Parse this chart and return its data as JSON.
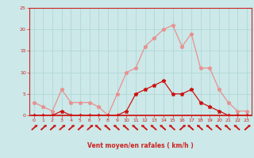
{
  "x": [
    0,
    1,
    2,
    3,
    4,
    5,
    6,
    7,
    8,
    9,
    10,
    11,
    12,
    13,
    14,
    15,
    16,
    17,
    18,
    19,
    20,
    21,
    22,
    23
  ],
  "wind_avg": [
    0,
    0,
    0,
    1,
    0,
    0,
    0,
    0,
    0,
    0,
    1,
    5,
    6,
    7,
    8,
    5,
    5,
    6,
    3,
    2,
    1,
    0,
    0,
    0
  ],
  "wind_gust": [
    3,
    2,
    1,
    6,
    3,
    3,
    3,
    2,
    0,
    5,
    10,
    11,
    16,
    18,
    20,
    21,
    16,
    19,
    11,
    11,
    6,
    3,
    1,
    1
  ],
  "xlabel": "Vent moyen/en rafales ( km/h )",
  "ylim": [
    0,
    25
  ],
  "xlim": [
    -0.5,
    23.5
  ],
  "yticks": [
    0,
    5,
    10,
    15,
    20,
    25
  ],
  "xticks": [
    0,
    1,
    2,
    3,
    4,
    5,
    6,
    7,
    8,
    9,
    10,
    11,
    12,
    13,
    14,
    15,
    16,
    17,
    18,
    19,
    20,
    21,
    22,
    23
  ],
  "grid_color": "#b0d8d8",
  "bg_color": "#cce8e8",
  "line_avg_color": "#cc1111",
  "line_gust_color": "#e89090",
  "axis_color": "#cc2222",
  "tick_color": "#cc2222",
  "label_color": "#cc2222",
  "figsize": [
    3.2,
    2.0
  ],
  "dpi": 100
}
